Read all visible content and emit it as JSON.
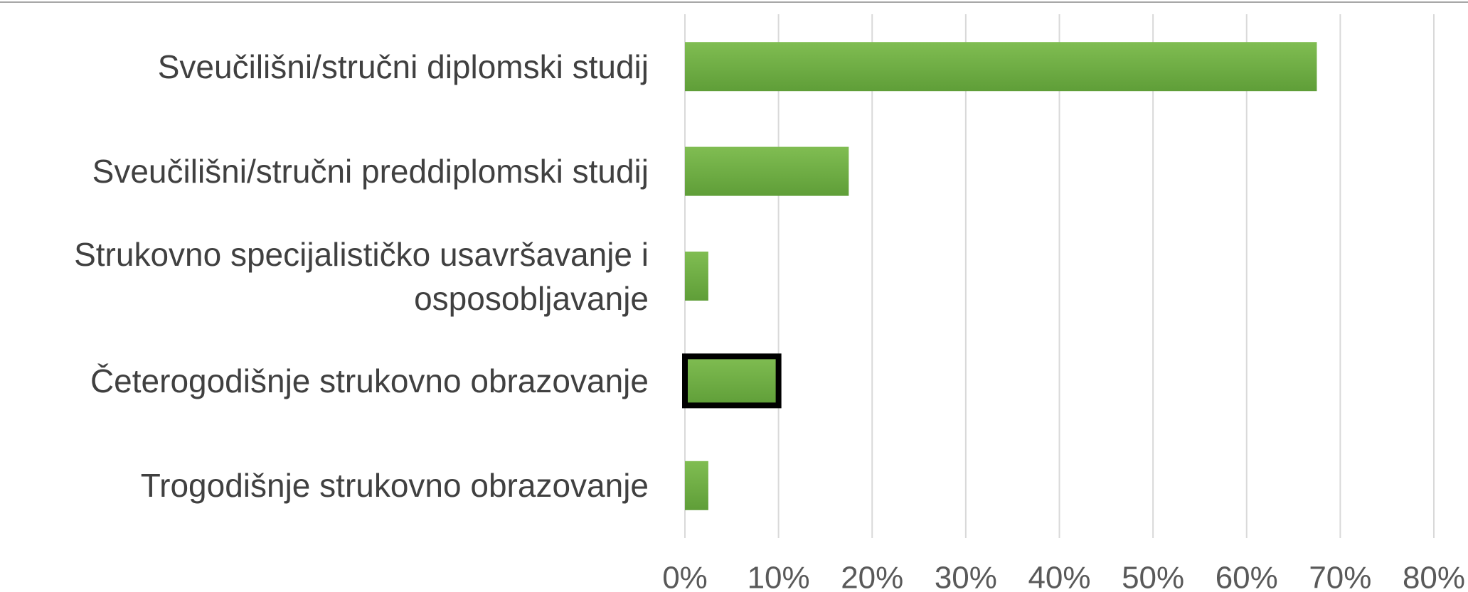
{
  "chart_data": {
    "type": "bar",
    "orientation": "horizontal",
    "categories": [
      "Sveučilišni/stručni diplomski studij",
      "Sveučilišni/stručni preddiplomski studij",
      "Strukovno specijalističko usavršavanje i osposobljavanje",
      "Četerogodišnje strukovno obrazovanje",
      "Trogodišnje strukovno obrazovanje"
    ],
    "values": [
      67.5,
      17.5,
      2.5,
      10,
      2.5
    ],
    "color": "#70ad47",
    "outline": [
      false,
      false,
      false,
      true,
      false
    ],
    "xlim": [
      0,
      80
    ],
    "xticks": [
      {
        "value": 0,
        "label": "0%"
      },
      {
        "value": 10,
        "label": "10%"
      },
      {
        "value": 20,
        "label": "20%"
      },
      {
        "value": 30,
        "label": "30%"
      },
      {
        "value": 40,
        "label": "40%"
      },
      {
        "value": 50,
        "label": "50%"
      },
      {
        "value": 60,
        "label": "60%"
      },
      {
        "value": 70,
        "label": "70%"
      },
      {
        "value": 80,
        "label": "80%"
      }
    ],
    "grid": true
  }
}
